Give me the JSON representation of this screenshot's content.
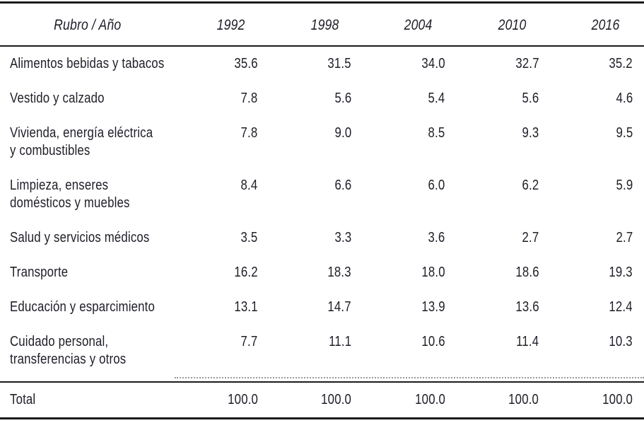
{
  "table": {
    "header": {
      "label": "Rubro / Año",
      "years": [
        "1992",
        "1998",
        "2004",
        "2010",
        "2016"
      ]
    },
    "rows": [
      {
        "label": "Alimentos bebidas y tabacos",
        "values": [
          "35.6",
          "31.5",
          "34.0",
          "32.7",
          "35.2"
        ]
      },
      {
        "label": "Vestido y calzado",
        "values": [
          "7.8",
          "5.6",
          "5.4",
          "5.6",
          "4.6"
        ]
      },
      {
        "label": "Vivienda, energía eléctrica\ny combustibles",
        "values": [
          "7.8",
          "9.0",
          "8.5",
          "9.3",
          "9.5"
        ]
      },
      {
        "label": "Limpieza, enseres\ndomésticos y muebles",
        "values": [
          "8.4",
          "6.6",
          "6.0",
          "6.2",
          "5.9"
        ]
      },
      {
        "label": "Salud y servicios médicos",
        "values": [
          "3.5",
          "3.3",
          "3.6",
          "2.7",
          "2.7"
        ]
      },
      {
        "label": "Transporte",
        "values": [
          "16.2",
          "18.3",
          "18.0",
          "18.6",
          "19.3"
        ]
      },
      {
        "label": "Educación y esparcimiento",
        "values": [
          "13.1",
          "14.7",
          "13.9",
          "13.6",
          "12.4"
        ]
      },
      {
        "label": "Cuidado personal,\ntransferencias y otros",
        "values": [
          "7.7",
          "11.1",
          "10.6",
          "11.4",
          "10.3"
        ]
      }
    ],
    "total": {
      "label": "Total",
      "values": [
        "100.0",
        "100.0",
        "100.0",
        "100.0",
        "100.0"
      ]
    }
  },
  "colors": {
    "text": "#1e1e28",
    "rule": "#1b1b1b",
    "background": "#ffffff"
  }
}
